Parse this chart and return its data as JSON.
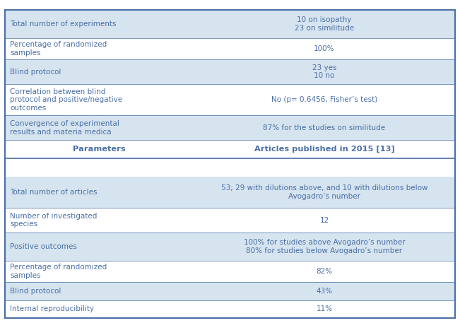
{
  "col_split": 0.42,
  "text_color": "#4a6fa5",
  "header_color": "#4a6fa5",
  "bg_light": "#d6e4f0",
  "bg_white": "#ffffff",
  "border_color": "#4a6fa5",
  "section1_header": {
    "left": "Parameters",
    "right": "Articles published in 2015 [13]"
  },
  "section1_rows": [
    {
      "left": "Total number of experiments",
      "right": "10 on isopathy\n23 on similitude",
      "bg": "light"
    },
    {
      "left": "Percentage of randomized\nsamples",
      "right": "100%",
      "bg": "white"
    },
    {
      "left": "Blind protocol",
      "right": "23 yes\n10 no",
      "bg": "light"
    },
    {
      "left": "Correlation between blind\nprotocol and positive/negative\noutcomes",
      "right": "No (p= 0.6456, Fisher’s test)",
      "bg": "white"
    },
    {
      "left": "Convergence of experimental\nresults and materia medica",
      "right": "87% for the studies on similitude",
      "bg": "light"
    }
  ],
  "section2_rows": [
    {
      "left": "Total number of articles",
      "right": "53; 29 with dilutions above, and 10 with dilutions below\nAvogadro’s number",
      "bg": "light"
    },
    {
      "left": "Number of investigated\nspecies",
      "right": "12",
      "bg": "white"
    },
    {
      "left": "Positive outcomes",
      "right": "100% for studies above Avogadro’s number\n80% for studies below Avogadro’s number",
      "bg": "light"
    },
    {
      "left": "Percentage of randomized\nsamples",
      "right": "82%",
      "bg": "white"
    },
    {
      "left": "Blind protocol",
      "right": "43%",
      "bg": "light"
    },
    {
      "left": "Internal reproducibility",
      "right": "11%",
      "bg": "white"
    }
  ],
  "fig_width": 6.51,
  "fig_height": 4.74,
  "dpi": 100
}
